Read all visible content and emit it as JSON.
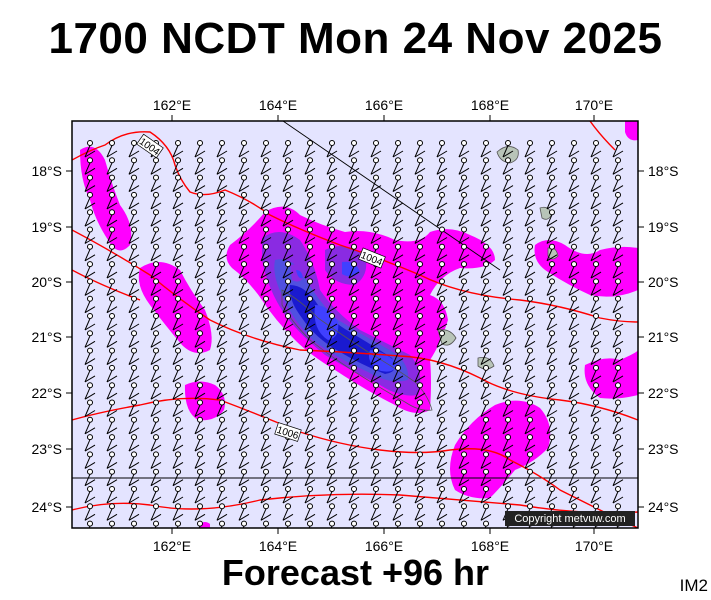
{
  "title": "1700 NCDT Mon 24 Nov 2025",
  "footer": "Forecast +96 hr",
  "image_id": "IM2",
  "copyright": "Copyright metvuw.com",
  "map": {
    "lon_ticks": [
      "162°E",
      "164°E",
      "166°E",
      "168°E",
      "170°E"
    ],
    "lat_ticks": [
      "18°S",
      "19°S",
      "20°S",
      "21°S",
      "22°S",
      "23°S",
      "24°S"
    ],
    "isobar_labels": [
      "1004",
      "1004",
      "1006"
    ],
    "colors": {
      "background": "#e4e4ff",
      "precip_light": "#ff00ff",
      "precip_heavy": "#0000cc",
      "isobar": "#ff0000",
      "land": "#b8c4b8"
    }
  }
}
